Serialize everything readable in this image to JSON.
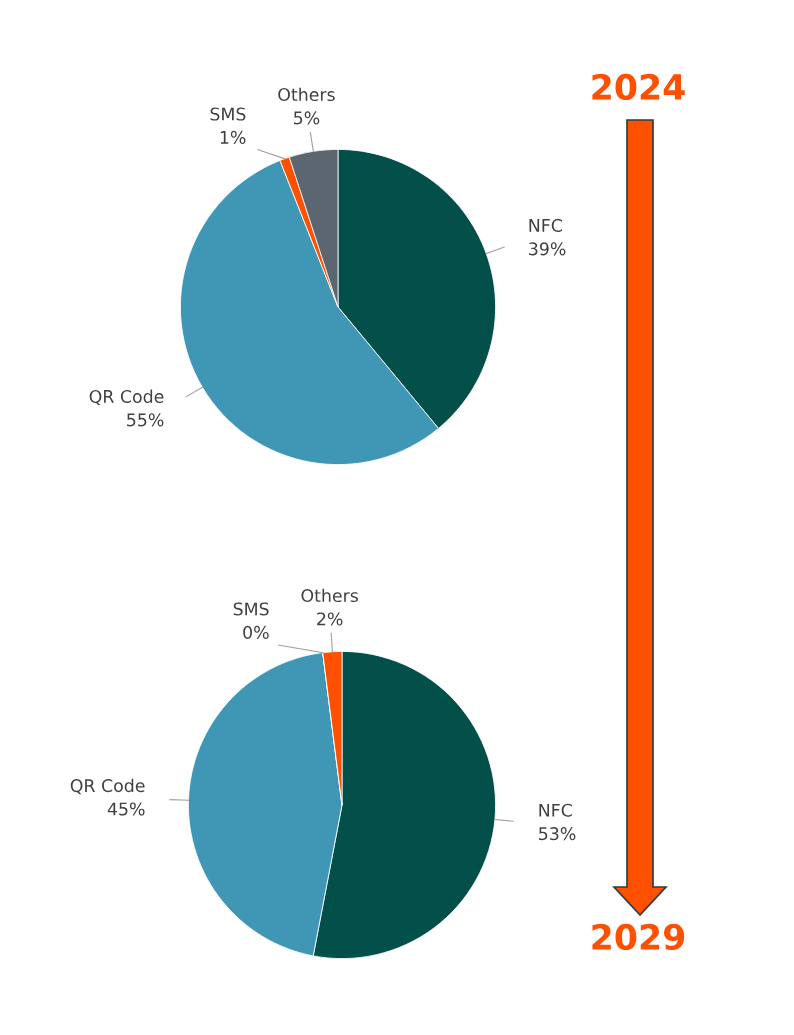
{
  "chart_data": [
    {
      "type": "pie",
      "title": "2024",
      "categories": [
        "NFC",
        "QR Code",
        "SMS",
        "Others"
      ],
      "values": [
        39,
        55,
        1,
        5
      ],
      "colors": [
        "#03504b",
        "#4096b5",
        "#ff5000",
        "#5c6670"
      ],
      "value_labels": [
        "39%",
        "55%",
        "1%",
        "5%"
      ]
    },
    {
      "type": "pie",
      "title": "2029",
      "categories": [
        "NFC",
        "QR Code",
        "SMS",
        "Others"
      ],
      "values": [
        53,
        45,
        0,
        2
      ],
      "colors": [
        "#03504b",
        "#4096b5",
        "#5c6670",
        "#ff5000"
      ],
      "value_labels": [
        "53%",
        "45%",
        "0%",
        "2%"
      ]
    }
  ]
}
